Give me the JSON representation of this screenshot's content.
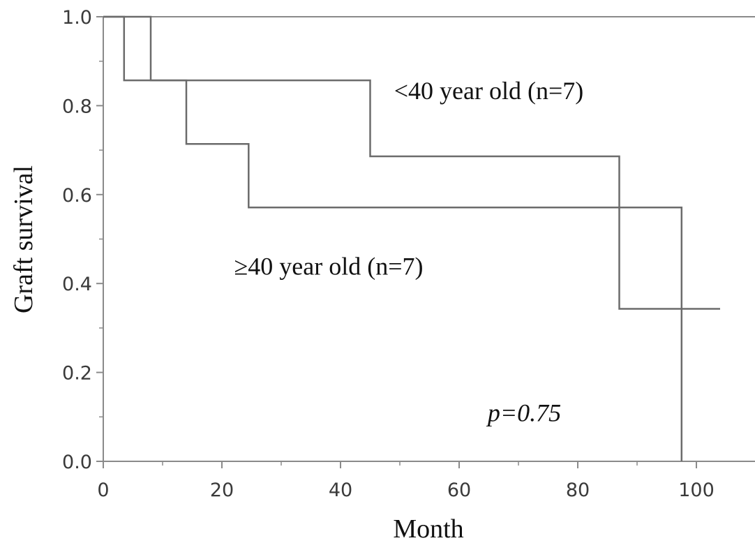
{
  "chart_data": {
    "type": "line",
    "step": true,
    "xlabel": "Month",
    "ylabel": "Graft survival",
    "xlim": [
      0,
      105
    ],
    "ylim": [
      0.0,
      1.0
    ],
    "x_ticks": [
      0,
      20,
      40,
      60,
      80,
      100
    ],
    "x_tick_labels": [
      "0",
      "20",
      "40",
      "60",
      "80",
      "100"
    ],
    "y_ticks": [
      0.0,
      0.2,
      0.4,
      0.6,
      0.8,
      1.0
    ],
    "y_tick_labels": [
      "0.0",
      "0.2",
      "0.4",
      "0.6",
      "0.8",
      "1.0"
    ],
    "grid": false,
    "series": [
      {
        "name": "<40 year old (n=7)",
        "color": "#6b6b6b",
        "x": [
          0,
          8,
          8,
          45,
          45,
          87,
          87,
          104
        ],
        "y": [
          1.0,
          1.0,
          0.857,
          0.857,
          0.686,
          0.686,
          0.343,
          0.343
        ]
      },
      {
        "name": "≥40 year old (n=7)",
        "color": "#6b6b6b",
        "x": [
          0,
          3.5,
          3.5,
          14,
          14,
          24.5,
          24.5,
          97.5,
          97.5
        ],
        "y": [
          1.0,
          1.0,
          0.857,
          0.857,
          0.714,
          0.714,
          0.571,
          0.571,
          0.0
        ]
      }
    ],
    "annotations": [
      {
        "text": "<40 year old (n=7)",
        "x": 65,
        "y": 0.815
      },
      {
        "text": "≥40 year old (n=7)",
        "x": 38,
        "y": 0.42
      },
      {
        "text": "p=0.75",
        "x": 71,
        "y": 0.09,
        "italic": true
      }
    ]
  }
}
